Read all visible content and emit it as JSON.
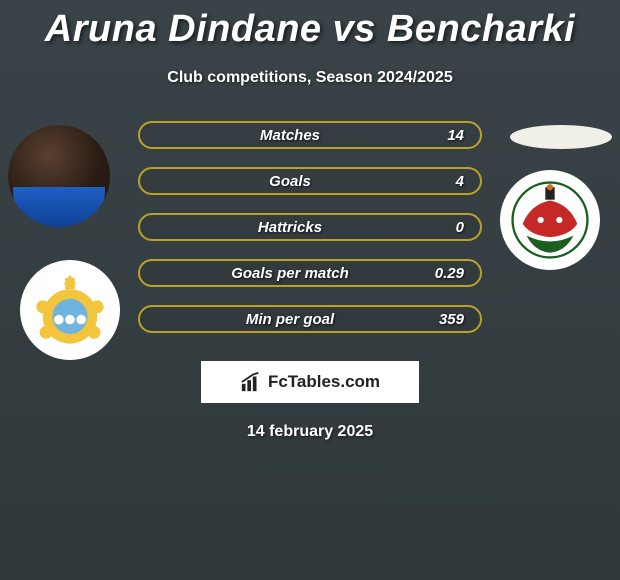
{
  "title": "Aruna Dindane vs Bencharki",
  "subtitle": "Club competitions, Season 2024/2025",
  "date": "14 february 2025",
  "bar_border_color": "#b9a227",
  "stats": [
    {
      "label": "Matches",
      "value": "14"
    },
    {
      "label": "Goals",
      "value": "4"
    },
    {
      "label": "Hattricks",
      "value": "0"
    },
    {
      "label": "Goals per match",
      "value": "0.29"
    },
    {
      "label": "Min per goal",
      "value": "359"
    }
  ],
  "footer_brand": "FcTables.com",
  "title_fontsize": 38,
  "subtitle_fontsize": 16,
  "stat_fontsize": 15,
  "date_fontsize": 16,
  "background_gradient": [
    "#3a4448",
    "#2f373a"
  ],
  "text_color": "#ffffff",
  "club_left_colors": {
    "main": "#f2c53d",
    "accent": "#6fb3e0"
  },
  "club_right_colors": {
    "main": "#c62828",
    "accent": "#1b5e20"
  }
}
